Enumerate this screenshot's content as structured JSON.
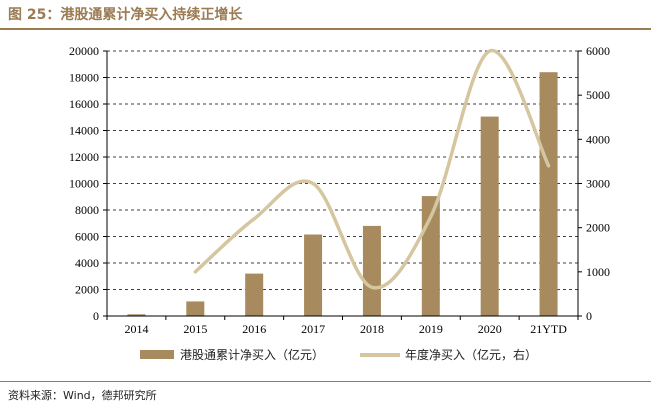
{
  "figure": {
    "title": "图 25：港股通累计净买入持续正增长",
    "source": "资料来源：Wind，德邦研究所"
  },
  "colors": {
    "bar": "#a88a5f",
    "line": "#d6c6a0",
    "accent": "#9a7b52"
  },
  "chart_data": {
    "type": "bar+line",
    "categories": [
      "2014",
      "2015",
      "2016",
      "2017",
      "2018",
      "2019",
      "2020",
      "21YTD"
    ],
    "series": [
      {
        "name": "港股通累计净买入（亿元）",
        "type": "bar",
        "axis": "left",
        "values": [
          130,
          1100,
          3200,
          6150,
          6800,
          9050,
          15050,
          18400
        ]
      },
      {
        "name": "年度净买入（亿元，右）",
        "type": "line",
        "axis": "right",
        "smooth": true,
        "values": [
          null,
          1000,
          2200,
          3000,
          650,
          2250,
          6000,
          3400
        ]
      }
    ],
    "left_axis": {
      "min": 0,
      "max": 20000,
      "ticks": [
        "0",
        "2000",
        "4000",
        "6000",
        "8000",
        "10000",
        "12000",
        "14000",
        "16000",
        "18000",
        "20000"
      ]
    },
    "right_axis": {
      "min": 0,
      "max": 6000,
      "ticks": [
        "0",
        "1000",
        "2000",
        "3000",
        "4000",
        "5000",
        "6000"
      ]
    },
    "grid": true,
    "legend_position": "bottom"
  }
}
